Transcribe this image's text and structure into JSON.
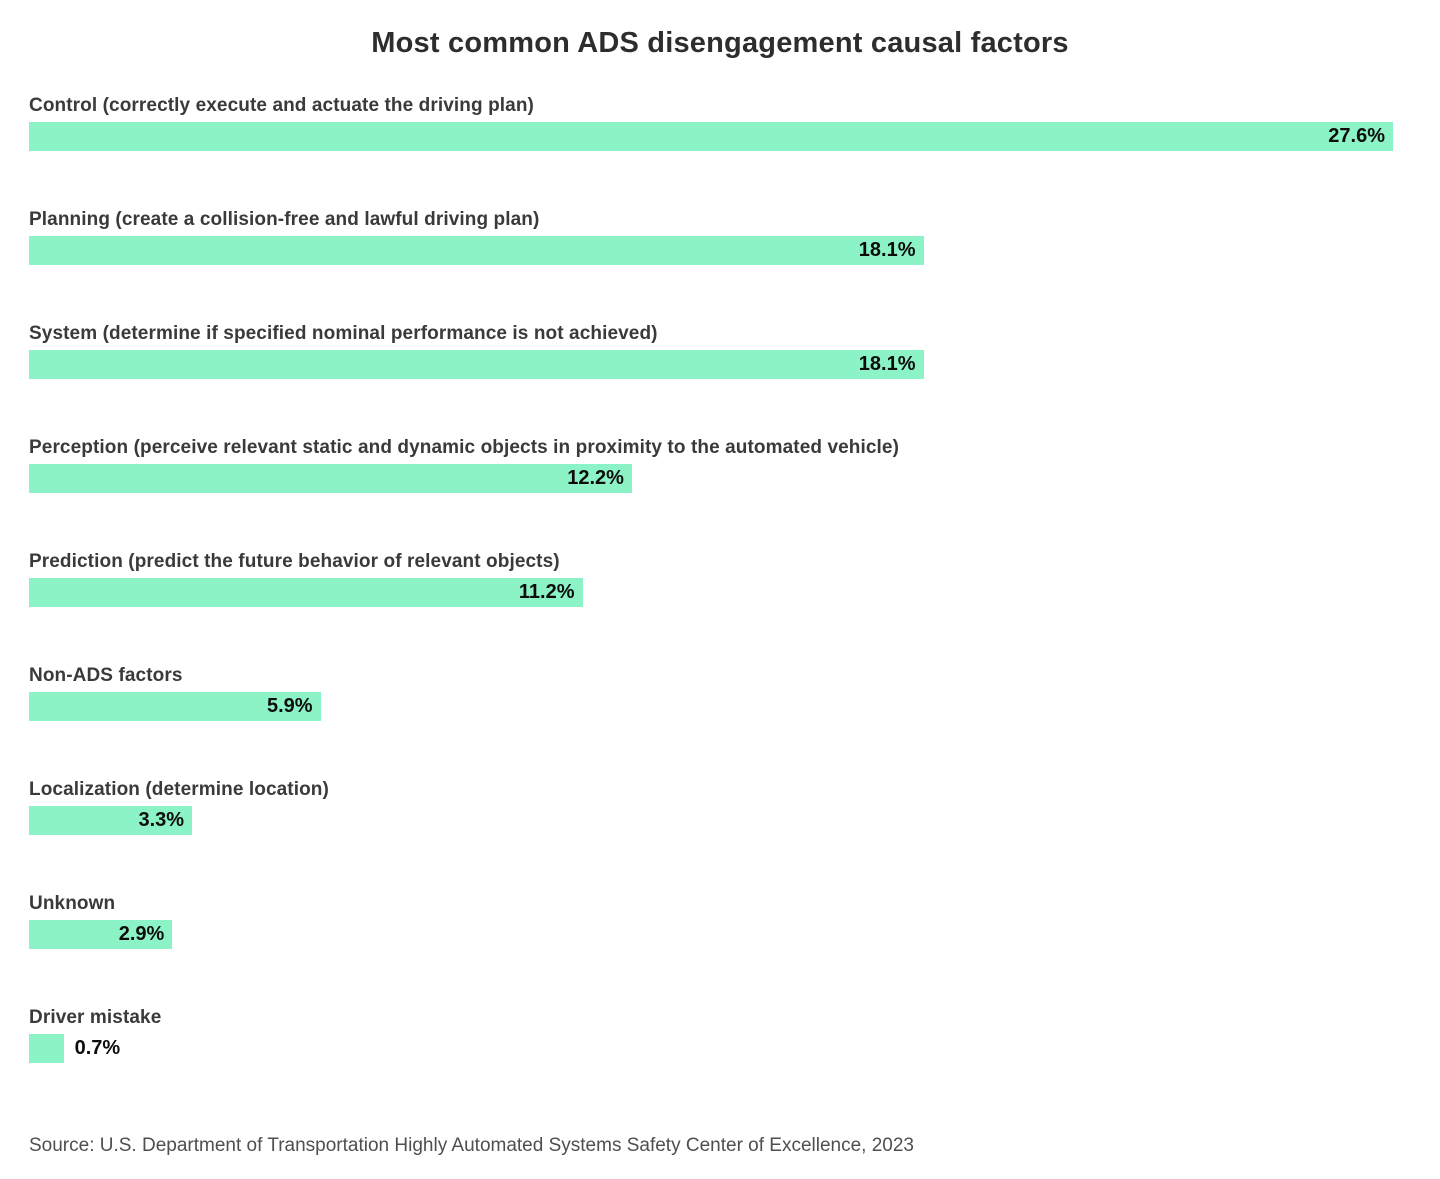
{
  "title": "Most common ADS disengagement causal factors",
  "source": "Source: U.S. Department of Transportation Highly Automated Systems Safety Center of Excellence, 2023",
  "colors": {
    "bar": "#8bf3c5",
    "title_text": "#2d2d2d",
    "category_text": "#3a3a3a",
    "value_text": "#0d0d0d",
    "source_text": "#4f4f4f",
    "background": "#ffffff"
  },
  "chart_data": {
    "type": "bar",
    "orientation": "horizontal",
    "title": "Most common ADS disengagement causal factors",
    "xlabel": "",
    "ylabel": "",
    "xlim": [
      0,
      27.6
    ],
    "grid": false,
    "legend": false,
    "bar_color": "#8bf3c5",
    "categories": [
      "Control (correctly execute and actuate the driving plan)",
      "Planning (create a collision-free and lawful driving plan)",
      "System (determine if specified nominal performance is not achieved)",
      "Perception (perceive relevant static and dynamic objects in proximity to the automated vehicle)",
      "Prediction (predict the future behavior of relevant objects)",
      "Non-ADS factors",
      "Localization (determine location)",
      "Unknown",
      "Driver mistake"
    ],
    "values": [
      27.6,
      18.1,
      18.1,
      12.2,
      11.2,
      5.9,
      3.3,
      2.9,
      0.7
    ],
    "value_labels": [
      "27.6%",
      "18.1%",
      "18.1%",
      "12.2%",
      "11.2%",
      "5.9%",
      "3.3%",
      "2.9%",
      "0.7%"
    ],
    "value_label_position": [
      "inside",
      "inside",
      "inside",
      "inside",
      "inside",
      "inside",
      "inside",
      "inside",
      "outside"
    ],
    "source": "Source: U.S. Department of Transportation Highly Automated Systems Safety Center of Excellence, 2023"
  }
}
